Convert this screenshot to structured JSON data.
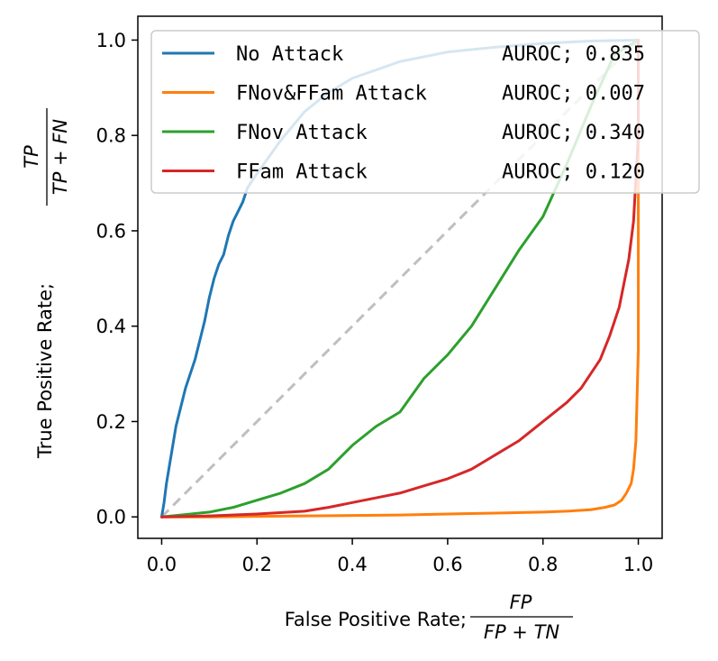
{
  "chart_data": {
    "type": "line",
    "xlabel": "False Positive Rate;",
    "xlabel_fraction": {
      "numerator": "FP",
      "denominator": "FP + TN"
    },
    "ylabel": "True Positive Rate;",
    "ylabel_fraction": {
      "numerator": "TP",
      "denominator": "TP + FN"
    },
    "xlim": [
      -0.05,
      1.05
    ],
    "ylim": [
      -0.045,
      1.05
    ],
    "xticks": [
      0.0,
      0.2,
      0.4,
      0.6,
      0.8,
      1.0
    ],
    "xtick_labels": [
      "0.0",
      "0.2",
      "0.4",
      "0.6",
      "0.8",
      "1.0"
    ],
    "yticks": [
      0.0,
      0.2,
      0.4,
      0.6,
      0.8,
      1.0
    ],
    "ytick_labels": [
      "0.0",
      "0.2",
      "0.4",
      "0.6",
      "0.8",
      "1.0"
    ],
    "grid": false,
    "legend_position": "top-right",
    "diagonal": {
      "x": [
        0,
        1
      ],
      "y": [
        0,
        1
      ],
      "color": "#bfbfbf",
      "style": "dashed"
    },
    "series": [
      {
        "name": "No Attack",
        "label": "AUROC; 0.835",
        "color": "#1f77b4",
        "x": [
          0,
          0.005,
          0.01,
          0.02,
          0.03,
          0.04,
          0.05,
          0.06,
          0.07,
          0.08,
          0.09,
          0.1,
          0.11,
          0.12,
          0.13,
          0.14,
          0.15,
          0.16,
          0.17,
          0.18,
          0.2,
          0.25,
          0.3,
          0.35,
          0.4,
          0.5,
          0.6,
          0.7,
          0.8,
          0.9,
          1.0
        ],
        "y": [
          0,
          0.03,
          0.07,
          0.13,
          0.19,
          0.23,
          0.27,
          0.3,
          0.33,
          0.37,
          0.41,
          0.46,
          0.5,
          0.53,
          0.55,
          0.59,
          0.62,
          0.64,
          0.66,
          0.69,
          0.72,
          0.79,
          0.85,
          0.89,
          0.92,
          0.955,
          0.975,
          0.985,
          0.993,
          0.998,
          1.0
        ]
      },
      {
        "name": "FNov&FFam Attack",
        "label": "AUROC; 0.007",
        "color": "#ff7f0e",
        "x": [
          0,
          0.1,
          0.2,
          0.3,
          0.4,
          0.5,
          0.6,
          0.7,
          0.8,
          0.85,
          0.9,
          0.93,
          0.95,
          0.965,
          0.975,
          0.985,
          0.99,
          0.995,
          1.0,
          1.0
        ],
        "y": [
          0,
          0.0,
          0.001,
          0.002,
          0.003,
          0.004,
          0.006,
          0.008,
          0.01,
          0.012,
          0.015,
          0.02,
          0.025,
          0.035,
          0.05,
          0.07,
          0.1,
          0.16,
          0.35,
          1.0
        ]
      },
      {
        "name": "FNov Attack",
        "label": "AUROC; 0.340",
        "color": "#2ca02c",
        "x": [
          0,
          0.05,
          0.1,
          0.15,
          0.2,
          0.25,
          0.3,
          0.35,
          0.4,
          0.45,
          0.5,
          0.55,
          0.6,
          0.65,
          0.7,
          0.75,
          0.8,
          0.85,
          0.9,
          0.95,
          1.0
        ],
        "y": [
          0,
          0.005,
          0.01,
          0.02,
          0.035,
          0.05,
          0.07,
          0.1,
          0.15,
          0.19,
          0.22,
          0.29,
          0.34,
          0.4,
          0.48,
          0.56,
          0.63,
          0.74,
          0.86,
          0.97,
          1.0
        ]
      },
      {
        "name": "FFam Attack",
        "label": "AUROC; 0.120",
        "color": "#d62728",
        "x": [
          0,
          0.1,
          0.2,
          0.3,
          0.35,
          0.4,
          0.45,
          0.5,
          0.55,
          0.6,
          0.65,
          0.7,
          0.75,
          0.8,
          0.85,
          0.88,
          0.9,
          0.92,
          0.94,
          0.96,
          0.98,
          0.99,
          1.0,
          1.0
        ],
        "y": [
          0,
          0.002,
          0.006,
          0.012,
          0.02,
          0.03,
          0.04,
          0.05,
          0.065,
          0.08,
          0.1,
          0.13,
          0.16,
          0.2,
          0.24,
          0.27,
          0.3,
          0.33,
          0.38,
          0.44,
          0.54,
          0.62,
          0.8,
          1.0
        ]
      }
    ]
  }
}
